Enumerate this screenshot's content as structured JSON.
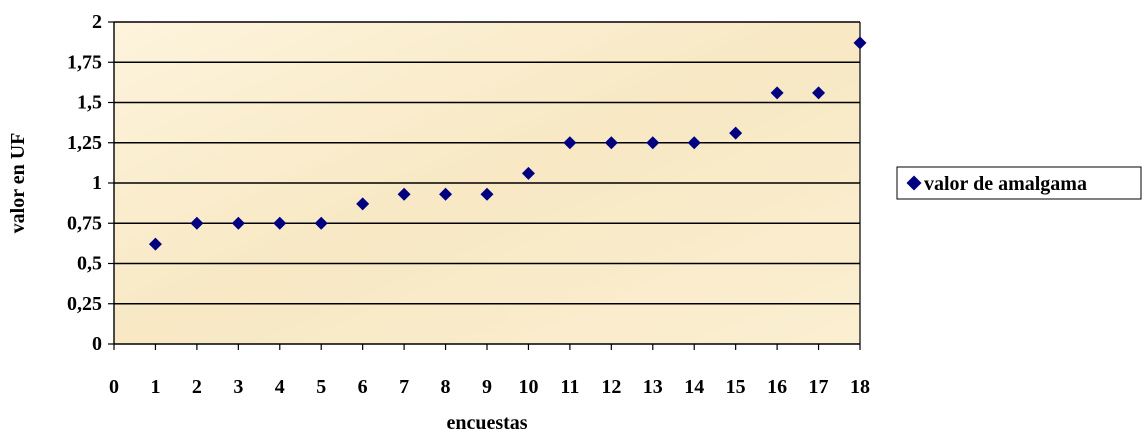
{
  "chart_data": {
    "type": "scatter",
    "title": "",
    "xlabel": "encuestas",
    "ylabel": "valor en UF",
    "xlim": [
      0,
      18
    ],
    "ylim": [
      0,
      2
    ],
    "x_ticks": [
      "0",
      "1",
      "2",
      "3",
      "4",
      "5",
      "6",
      "7",
      "8",
      "9",
      "10",
      "11",
      "12",
      "13",
      "14",
      "15",
      "16",
      "17",
      "18"
    ],
    "y_ticks": [
      "0",
      "0,25",
      "0,5",
      "0,75",
      "1",
      "1,25",
      "1,5",
      "1,75",
      "2"
    ],
    "grid": "horizontal",
    "legend_position": "right",
    "series": [
      {
        "name": "valor de amalgama",
        "color": "#000080",
        "marker": "diamond",
        "points": [
          {
            "x": 1,
            "y": 0.62
          },
          {
            "x": 2,
            "y": 0.75
          },
          {
            "x": 3,
            "y": 0.75
          },
          {
            "x": 4,
            "y": 0.75
          },
          {
            "x": 5,
            "y": 0.75
          },
          {
            "x": 6,
            "y": 0.87
          },
          {
            "x": 7,
            "y": 0.93
          },
          {
            "x": 8,
            "y": 0.93
          },
          {
            "x": 9,
            "y": 0.93
          },
          {
            "x": 10,
            "y": 1.06
          },
          {
            "x": 11,
            "y": 1.25
          },
          {
            "x": 12,
            "y": 1.25
          },
          {
            "x": 13,
            "y": 1.25
          },
          {
            "x": 14,
            "y": 1.25
          },
          {
            "x": 15,
            "y": 1.31
          },
          {
            "x": 16,
            "y": 1.56
          },
          {
            "x": 17,
            "y": 1.56
          },
          {
            "x": 18,
            "y": 1.87
          }
        ]
      }
    ]
  }
}
